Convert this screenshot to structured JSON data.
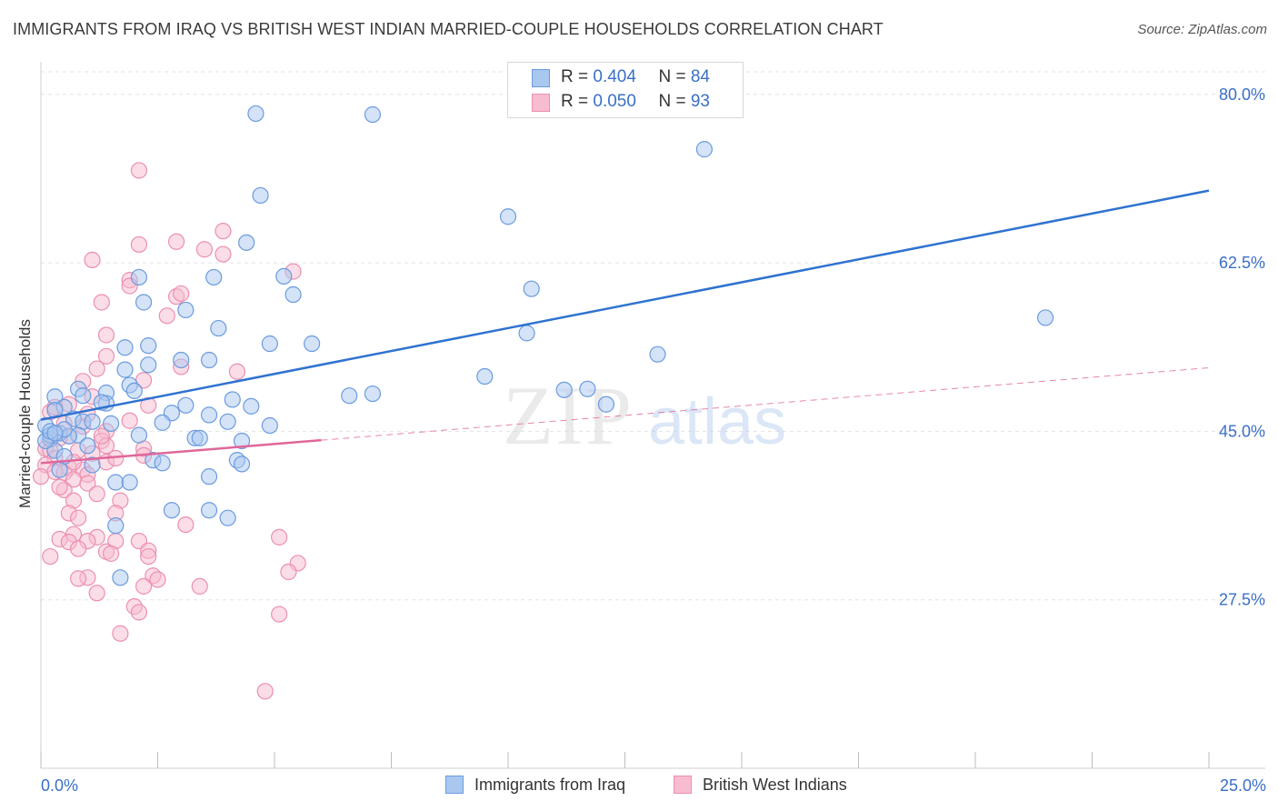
{
  "title": "IMMIGRANTS FROM IRAQ VS BRITISH WEST INDIAN MARRIED-COUPLE HOUSEHOLDS CORRELATION CHART",
  "source": "Source: ZipAtlas.com",
  "watermark": {
    "zip": "ZIP",
    "atlas": "atlas"
  },
  "legend_top": [
    {
      "r_label": "R = ",
      "r_value": "0.404",
      "n_label": "N = ",
      "n_value": "84"
    },
    {
      "r_label": "R = ",
      "r_value": "0.050",
      "n_label": "N = ",
      "n_value": "93"
    }
  ],
  "colors": {
    "blue_fill": "#a9c8f0",
    "blue_stroke": "#6a9be0",
    "blue_line": "#2f72d0",
    "pink_fill": "#f7bcd0",
    "pink_stroke": "#ec8fb0",
    "pink_line": "#e0679a",
    "axis_text": "#3a6fc7",
    "grid": "#e3e3e3"
  },
  "chart_data": {
    "type": "scatter",
    "title": "IMMIGRANTS FROM IRAQ VS BRITISH WEST INDIAN MARRIED-COUPLE HOUSEHOLDS CORRELATION CHART",
    "xlabel": "",
    "ylabel": "Married-couple Households",
    "xlim": [
      0,
      25
    ],
    "ylim": [
      10,
      83
    ],
    "x_tick_labels": [
      "0.0%",
      "25.0%"
    ],
    "y_ticks": [
      27.5,
      45.0,
      62.5,
      80.0
    ],
    "y_tick_labels": [
      "27.5%",
      "45.0%",
      "62.5%",
      "80.0%"
    ],
    "grid": true,
    "legend": "bottom",
    "series": [
      {
        "name": "Immigrants from Iraq",
        "r": 0.404,
        "n": 84,
        "trend": {
          "x": [
            0,
            25
          ],
          "y": [
            46.2,
            70.0
          ],
          "style": "solid"
        },
        "points": [
          [
            4.6,
            78.0
          ],
          [
            7.1,
            77.9
          ],
          [
            14.2,
            74.3
          ],
          [
            4.7,
            69.5
          ],
          [
            10.0,
            67.3
          ],
          [
            4.4,
            64.6
          ],
          [
            5.2,
            61.1
          ],
          [
            3.7,
            61.0
          ],
          [
            2.1,
            61.0
          ],
          [
            10.5,
            59.8
          ],
          [
            5.4,
            59.2
          ],
          [
            2.2,
            58.4
          ],
          [
            3.1,
            57.6
          ],
          [
            21.5,
            56.8
          ],
          [
            3.8,
            55.7
          ],
          [
            10.4,
            55.2
          ],
          [
            1.8,
            53.7
          ],
          [
            2.3,
            53.9
          ],
          [
            4.9,
            54.1
          ],
          [
            5.8,
            54.1
          ],
          [
            13.2,
            53.0
          ],
          [
            3.0,
            52.4
          ],
          [
            3.6,
            52.4
          ],
          [
            2.3,
            51.9
          ],
          [
            1.8,
            51.4
          ],
          [
            9.5,
            50.7
          ],
          [
            1.9,
            49.8
          ],
          [
            0.8,
            49.4
          ],
          [
            2.0,
            49.2
          ],
          [
            1.4,
            49.0
          ],
          [
            0.3,
            48.6
          ],
          [
            11.2,
            49.3
          ],
          [
            11.7,
            49.4
          ],
          [
            6.6,
            48.7
          ],
          [
            7.1,
            48.9
          ],
          [
            4.1,
            48.3
          ],
          [
            1.4,
            47.9
          ],
          [
            0.5,
            47.5
          ],
          [
            0.3,
            47.2
          ],
          [
            3.1,
            47.7
          ],
          [
            4.5,
            47.6
          ],
          [
            2.8,
            46.9
          ],
          [
            3.6,
            46.7
          ],
          [
            12.1,
            47.8
          ],
          [
            0.7,
            46.3
          ],
          [
            0.9,
            46.0
          ],
          [
            1.1,
            46.0
          ],
          [
            1.5,
            45.8
          ],
          [
            0.1,
            45.6
          ],
          [
            2.6,
            45.9
          ],
          [
            4.0,
            46.0
          ],
          [
            4.9,
            45.6
          ],
          [
            0.4,
            44.8
          ],
          [
            0.8,
            44.6
          ],
          [
            0.2,
            44.2
          ],
          [
            2.1,
            44.6
          ],
          [
            3.3,
            44.3
          ],
          [
            3.4,
            44.3
          ],
          [
            4.3,
            44.0
          ],
          [
            1.0,
            43.5
          ],
          [
            0.3,
            43.0
          ],
          [
            0.5,
            42.4
          ],
          [
            2.4,
            42.0
          ],
          [
            2.6,
            41.7
          ],
          [
            4.2,
            42.0
          ],
          [
            4.3,
            41.6
          ],
          [
            1.1,
            41.5
          ],
          [
            0.4,
            41.0
          ],
          [
            1.6,
            39.7
          ],
          [
            3.6,
            40.3
          ],
          [
            1.9,
            39.7
          ],
          [
            2.8,
            36.8
          ],
          [
            3.6,
            36.8
          ],
          [
            4.0,
            36.0
          ],
          [
            1.6,
            35.2
          ],
          [
            1.7,
            29.8
          ],
          [
            0.2,
            44.6
          ],
          [
            0.1,
            44.0
          ],
          [
            0.6,
            44.5
          ],
          [
            0.2,
            45.0
          ],
          [
            1.3,
            48.0
          ],
          [
            0.9,
            48.7
          ],
          [
            0.5,
            45.2
          ],
          [
            0.3,
            44.8
          ]
        ]
      },
      {
        "name": "British West Indians",
        "r": 0.05,
        "n": 93,
        "trend": {
          "x": [
            0,
            25
          ],
          "y": [
            41.7,
            51.6
          ],
          "solid_until": 6.0,
          "style": "dashed"
        },
        "points": [
          [
            2.1,
            72.1
          ],
          [
            3.9,
            65.8
          ],
          [
            2.1,
            64.4
          ],
          [
            2.9,
            64.7
          ],
          [
            3.5,
            63.9
          ],
          [
            3.9,
            63.4
          ],
          [
            1.1,
            62.8
          ],
          [
            5.4,
            61.6
          ],
          [
            1.9,
            60.7
          ],
          [
            1.9,
            60.1
          ],
          [
            2.9,
            59.0
          ],
          [
            3.0,
            59.3
          ],
          [
            1.3,
            58.4
          ],
          [
            2.7,
            57.0
          ],
          [
            1.4,
            55.0
          ],
          [
            1.4,
            52.8
          ],
          [
            1.2,
            51.5
          ],
          [
            4.2,
            51.2
          ],
          [
            3.0,
            51.7
          ],
          [
            2.2,
            50.3
          ],
          [
            0.9,
            50.2
          ],
          [
            1.1,
            48.6
          ],
          [
            2.3,
            47.7
          ],
          [
            0.6,
            47.8
          ],
          [
            0.2,
            47.0
          ],
          [
            1.9,
            46.1
          ],
          [
            0.9,
            45.5
          ],
          [
            1.4,
            45.0
          ],
          [
            0.6,
            44.5
          ],
          [
            0.2,
            44.2
          ],
          [
            0.4,
            44.3
          ],
          [
            1.3,
            44.0
          ],
          [
            1.4,
            43.5
          ],
          [
            2.2,
            43.2
          ],
          [
            0.1,
            43.2
          ],
          [
            0.2,
            43.0
          ],
          [
            0.8,
            43.0
          ],
          [
            1.1,
            42.7
          ],
          [
            2.2,
            42.5
          ],
          [
            0.3,
            42.2
          ],
          [
            1.4,
            41.8
          ],
          [
            0.1,
            41.5
          ],
          [
            0.6,
            41.2
          ],
          [
            0.9,
            41.0
          ],
          [
            0.3,
            40.8
          ],
          [
            0.5,
            40.7
          ],
          [
            1.0,
            40.5
          ],
          [
            0.0,
            40.3
          ],
          [
            0.7,
            40.0
          ],
          [
            1.0,
            39.6
          ],
          [
            0.5,
            38.9
          ],
          [
            1.2,
            38.5
          ],
          [
            0.7,
            37.8
          ],
          [
            1.7,
            37.8
          ],
          [
            0.6,
            36.5
          ],
          [
            0.8,
            36.0
          ],
          [
            1.6,
            36.5
          ],
          [
            3.1,
            35.3
          ],
          [
            0.7,
            34.3
          ],
          [
            1.2,
            34.0
          ],
          [
            0.4,
            33.8
          ],
          [
            1.0,
            33.6
          ],
          [
            1.6,
            33.6
          ],
          [
            2.1,
            33.6
          ],
          [
            5.1,
            34.0
          ],
          [
            0.6,
            33.5
          ],
          [
            0.8,
            32.8
          ],
          [
            1.4,
            32.5
          ],
          [
            1.5,
            32.3
          ],
          [
            2.3,
            32.6
          ],
          [
            2.3,
            32.0
          ],
          [
            0.2,
            32.0
          ],
          [
            5.5,
            31.3
          ],
          [
            5.3,
            30.4
          ],
          [
            2.4,
            30.0
          ],
          [
            2.5,
            29.6
          ],
          [
            1.0,
            29.8
          ],
          [
            0.8,
            29.7
          ],
          [
            2.2,
            28.9
          ],
          [
            3.4,
            28.9
          ],
          [
            1.2,
            28.2
          ],
          [
            2.0,
            26.8
          ],
          [
            2.1,
            26.2
          ],
          [
            5.1,
            26.0
          ],
          [
            1.7,
            24.0
          ],
          [
            4.8,
            18.0
          ],
          [
            0.3,
            47.5
          ],
          [
            1.0,
            46.8
          ],
          [
            0.5,
            45.8
          ],
          [
            1.3,
            44.5
          ],
          [
            0.7,
            41.8
          ],
          [
            1.6,
            42.2
          ],
          [
            0.4,
            39.2
          ]
        ]
      }
    ]
  }
}
